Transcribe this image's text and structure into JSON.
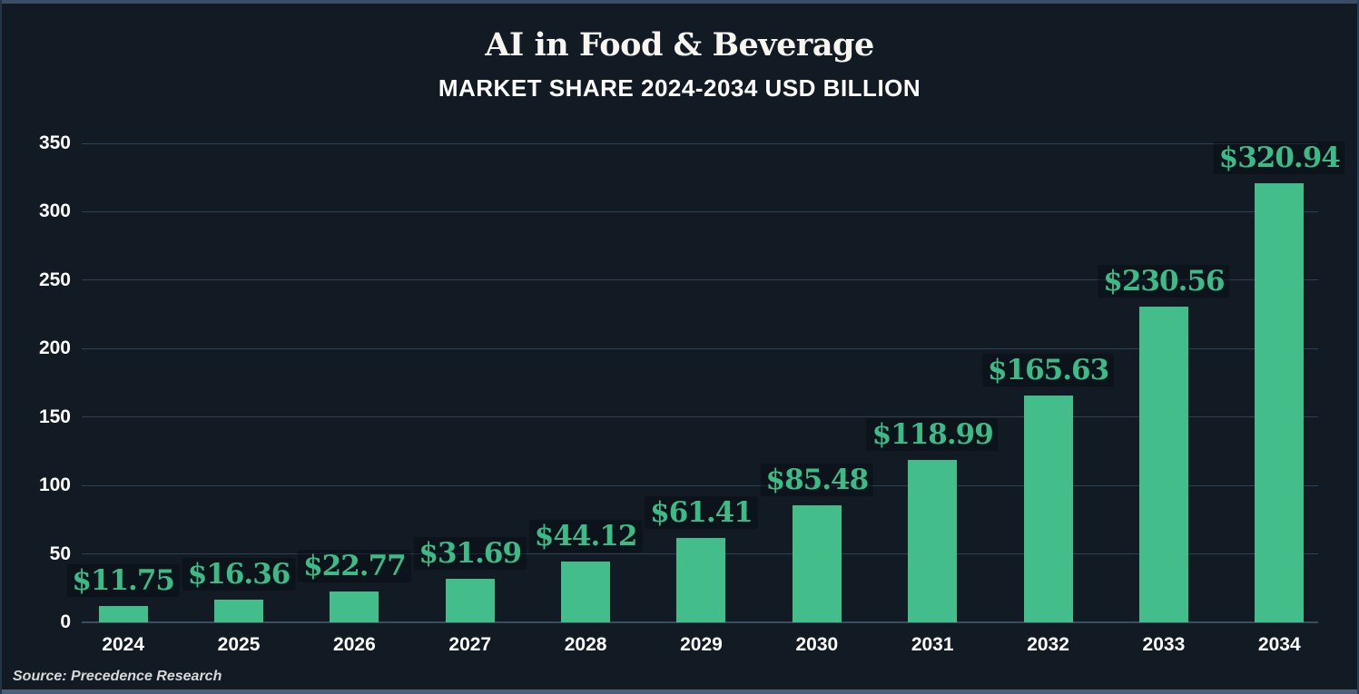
{
  "header": {
    "title": "AI in Food & Beverage",
    "subtitle": "MARKET SHARE 2024-2034 USD BILLION"
  },
  "footer": {
    "source": "Source: Precedence Research"
  },
  "chart_data": {
    "type": "bar",
    "title": "AI in Food & Beverage",
    "subtitle": "MARKET SHARE 2024-2034 USD BILLION",
    "categories": [
      "2024",
      "2025",
      "2026",
      "2027",
      "2028",
      "2029",
      "2030",
      "2031",
      "2032",
      "2033",
      "2034"
    ],
    "values": [
      11.75,
      16.36,
      22.77,
      31.69,
      44.12,
      61.41,
      85.48,
      118.99,
      165.63,
      230.56,
      320.94
    ],
    "value_labels": [
      "$11.75",
      "$16.36",
      "$22.77",
      "$31.69",
      "$44.12",
      "$61.41",
      "$85.48",
      "$118.99",
      "$165.63",
      "$230.56",
      "$320.94"
    ],
    "xlabel": "",
    "ylabel": "",
    "ylim": [
      0,
      350
    ],
    "yticks": [
      0,
      50,
      100,
      150,
      200,
      250,
      300,
      350
    ],
    "grid": true,
    "legend": "none",
    "source": "Source: Precedence Research",
    "colors": {
      "bar": "#43bd8a",
      "value_label": "#3dbb86",
      "background": "#121b24",
      "gridline": "#2e4154",
      "axis_text": "#ffffff",
      "top_strip": "#3a4d64",
      "bottom_strip": "#4d6078"
    }
  }
}
